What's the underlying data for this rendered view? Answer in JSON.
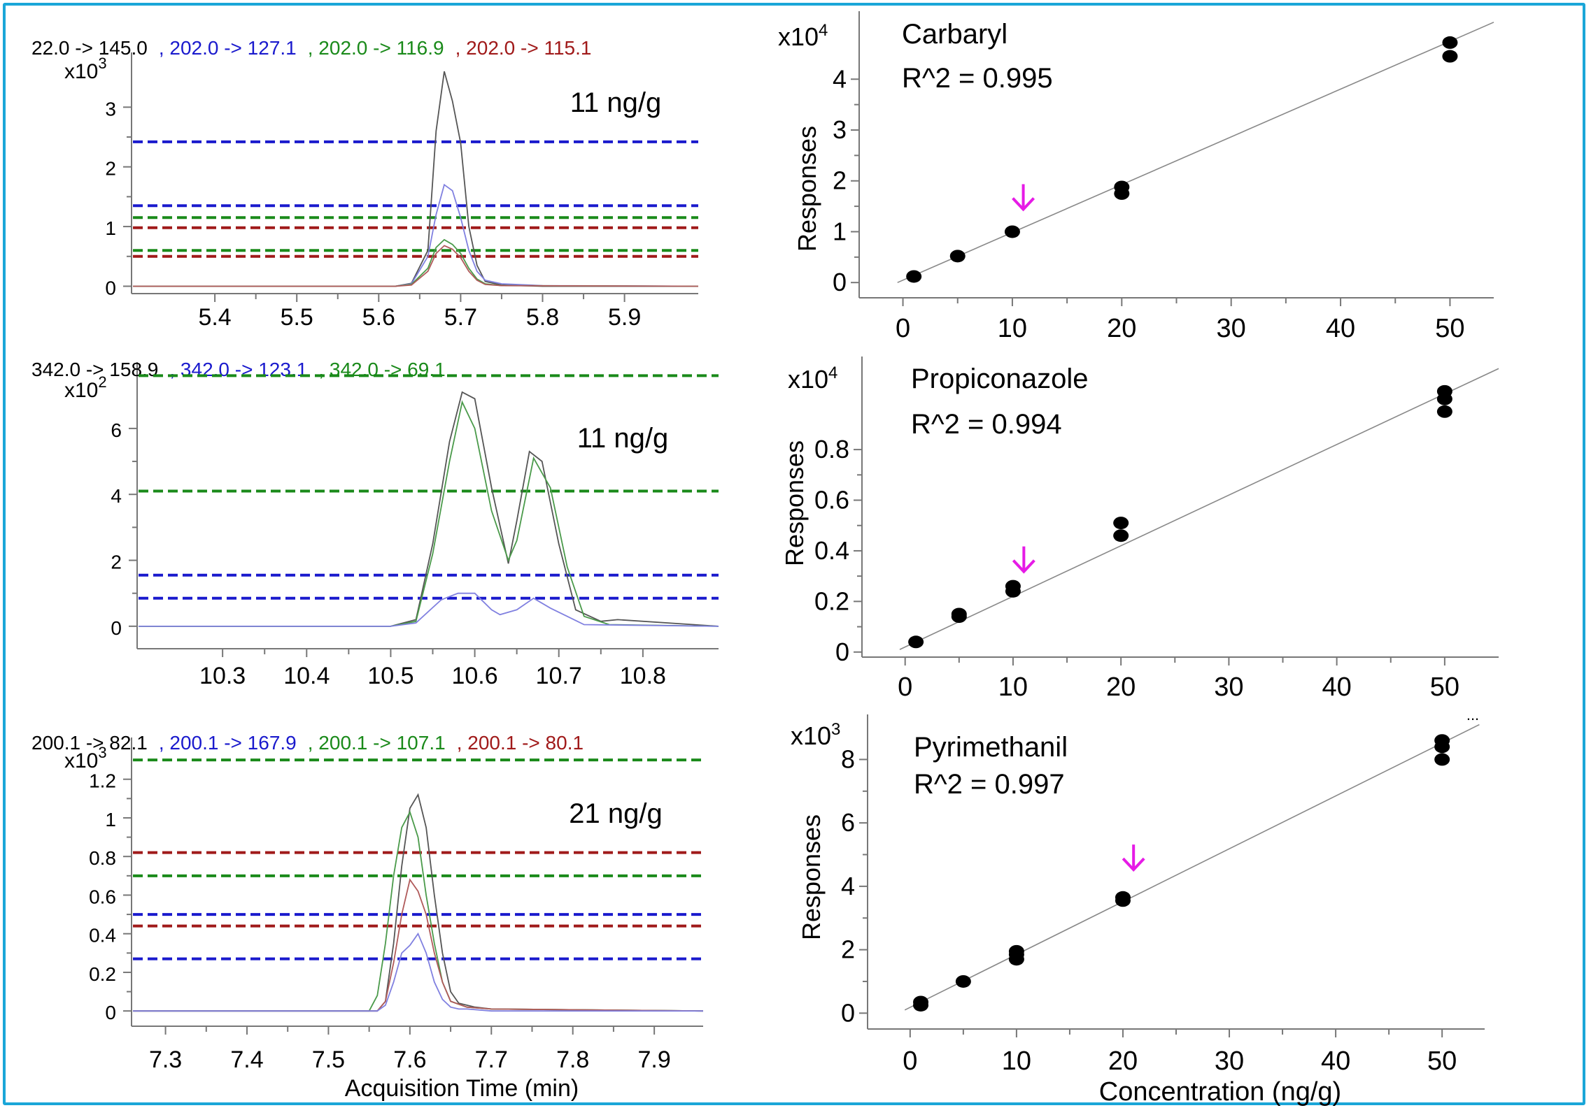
{
  "figure": {
    "frame_color": "#1aa6d8",
    "x_title_chrom": "Acquisition Time (min)",
    "x_title_cal": "Concentration (ng/g)",
    "y_title_cal": "Responses",
    "ellipsis": "..."
  },
  "chart_data": [
    {
      "type": "line",
      "panel": "chromatogram-1",
      "legend": [
        {
          "label": "22.0 -> 145.0",
          "color": "#000000"
        },
        {
          "label": ", 202.0 -> 127.1",
          "color": "#1a1acd"
        },
        {
          "label": ", 202.0 -> 116.9",
          "color": "#1a8a1a"
        },
        {
          "label": ", 202.0 -> 115.1",
          "color": "#a01a1a"
        }
      ],
      "annotation": "11 ng/g",
      "y_multiplier": "x10",
      "y_exponent": "3",
      "xlim": [
        5.3,
        5.99
      ],
      "ylim": [
        -0.1,
        3.8
      ],
      "xticks": [
        5.4,
        5.5,
        5.6,
        5.7,
        5.8,
        5.9
      ],
      "yticks": [
        0,
        1,
        2,
        3
      ],
      "x_tick_labels": [
        "5.4",
        "5.5",
        "5.6",
        "5.7",
        "5.8",
        "5.9"
      ],
      "y_tick_labels": [
        "0",
        "1",
        "2",
        "3"
      ],
      "thresholds": [
        {
          "y": 2.42,
          "color": "#1a1acd"
        },
        {
          "y": 1.35,
          "color": "#1a1acd"
        },
        {
          "y": 1.15,
          "color": "#1a8a1a"
        },
        {
          "y": 0.98,
          "color": "#a01a1a"
        },
        {
          "y": 0.6,
          "color": "#1a8a1a"
        },
        {
          "y": 0.5,
          "color": "#a01a1a"
        }
      ],
      "series": [
        {
          "color": "#555555",
          "x": [
            5.3,
            5.62,
            5.64,
            5.66,
            5.67,
            5.68,
            5.69,
            5.7,
            5.71,
            5.72,
            5.73,
            5.75,
            5.8,
            5.99
          ],
          "y": [
            0,
            0,
            0.05,
            0.6,
            2.6,
            3.6,
            3.1,
            2.4,
            1.0,
            0.35,
            0.08,
            0.02,
            0,
            0
          ]
        },
        {
          "color": "#8080e0",
          "x": [
            5.3,
            5.62,
            5.64,
            5.66,
            5.67,
            5.68,
            5.69,
            5.7,
            5.71,
            5.72,
            5.73,
            5.75,
            5.8,
            5.99
          ],
          "y": [
            0,
            0,
            0.04,
            0.5,
            1.2,
            1.7,
            1.6,
            1.15,
            0.6,
            0.25,
            0.1,
            0.04,
            0.01,
            0
          ]
        },
        {
          "color": "#4a9a4a",
          "x": [
            5.3,
            5.62,
            5.64,
            5.66,
            5.67,
            5.68,
            5.69,
            5.7,
            5.71,
            5.72,
            5.73,
            5.75,
            5.99
          ],
          "y": [
            0,
            0,
            0.03,
            0.3,
            0.65,
            0.78,
            0.7,
            0.55,
            0.3,
            0.12,
            0.04,
            0.01,
            0
          ]
        },
        {
          "color": "#b05a5a",
          "x": [
            5.3,
            5.62,
            5.64,
            5.66,
            5.67,
            5.68,
            5.69,
            5.7,
            5.71,
            5.72,
            5.73,
            5.75,
            5.99
          ],
          "y": [
            0,
            0,
            0.02,
            0.25,
            0.55,
            0.68,
            0.62,
            0.48,
            0.25,
            0.1,
            0.03,
            0.01,
            0
          ]
        }
      ]
    },
    {
      "type": "line",
      "panel": "chromatogram-2",
      "legend": [
        {
          "label": "342.0 -> 158.9",
          "color": "#000000"
        },
        {
          "label": ", 342.0 -> 123.1",
          "color": "#1a1acd"
        },
        {
          "label": ", 342.0 -> 69.1",
          "color": "#1a8a1a"
        }
      ],
      "annotation": "11 ng/g",
      "y_multiplier": "x10",
      "y_exponent": "2",
      "xlim": [
        10.2,
        10.89
      ],
      "ylim": [
        -0.3,
        7.8
      ],
      "xticks": [
        10.3,
        10.4,
        10.5,
        10.6,
        10.7,
        10.8
      ],
      "yticks": [
        0,
        2,
        4,
        6
      ],
      "x_tick_labels": [
        "10.3",
        "10.4",
        "10.5",
        "10.6",
        "10.7",
        "10.8"
      ],
      "y_tick_labels": [
        "0",
        "2",
        "4",
        "6"
      ],
      "thresholds": [
        {
          "y": 7.6,
          "color": "#1a8a1a"
        },
        {
          "y": 4.1,
          "color": "#1a8a1a"
        },
        {
          "y": 1.55,
          "color": "#1a1acd"
        },
        {
          "y": 0.85,
          "color": "#1a1acd"
        }
      ],
      "series": [
        {
          "color": "#555555",
          "x": [
            10.2,
            10.5,
            10.53,
            10.55,
            10.57,
            10.585,
            10.6,
            10.62,
            10.64,
            10.65,
            10.665,
            10.68,
            10.7,
            10.72,
            10.75,
            10.77,
            10.89
          ],
          "y": [
            0,
            0,
            0.2,
            2.5,
            5.6,
            7.1,
            6.9,
            4.2,
            1.9,
            3.2,
            5.3,
            5.0,
            2.5,
            0.5,
            0.15,
            0.2,
            0
          ]
        },
        {
          "color": "#4a9a4a",
          "x": [
            10.2,
            10.5,
            10.53,
            10.55,
            10.57,
            10.585,
            10.6,
            10.62,
            10.64,
            10.65,
            10.67,
            10.69,
            10.71,
            10.73,
            10.76,
            10.89
          ],
          "y": [
            0,
            0,
            0.15,
            2.2,
            5.0,
            6.8,
            6.0,
            3.5,
            2.0,
            2.6,
            5.1,
            4.2,
            1.8,
            0.3,
            0.05,
            0
          ]
        },
        {
          "color": "#8080e0",
          "x": [
            10.2,
            10.5,
            10.53,
            10.56,
            10.58,
            10.6,
            10.62,
            10.63,
            10.65,
            10.67,
            10.69,
            10.71,
            10.73,
            10.89
          ],
          "y": [
            0,
            0,
            0.1,
            0.8,
            1.0,
            1.0,
            0.5,
            0.35,
            0.5,
            0.85,
            0.55,
            0.3,
            0.05,
            0
          ]
        }
      ]
    },
    {
      "type": "line",
      "panel": "chromatogram-3",
      "legend": [
        {
          "label": "200.1 -> 82.1",
          "color": "#000000"
        },
        {
          "label": ", 200.1 -> 167.9",
          "color": "#1a1acd"
        },
        {
          "label": ", 200.1 -> 107.1",
          "color": "#1a8a1a"
        },
        {
          "label": ", 200.1 -> 80.1",
          "color": "#a01a1a"
        }
      ],
      "annotation": "21 ng/g",
      "y_multiplier": "x10",
      "y_exponent": "3",
      "xlim": [
        7.26,
        7.96
      ],
      "ylim": [
        -0.05,
        1.38
      ],
      "xticks": [
        7.3,
        7.4,
        7.5,
        7.6,
        7.7,
        7.8,
        7.9
      ],
      "yticks": [
        0,
        0.2,
        0.4,
        0.6,
        0.8,
        1,
        1.2
      ],
      "x_tick_labels": [
        "7.3",
        "7.4",
        "7.5",
        "7.6",
        "7.7",
        "7.8",
        "7.9"
      ],
      "y_tick_labels": [
        "0",
        "0.2",
        "0.4",
        "0.6",
        "0.8",
        "1",
        "1.2"
      ],
      "thresholds": [
        {
          "y": 1.3,
          "color": "#1a8a1a"
        },
        {
          "y": 0.82,
          "color": "#a01a1a"
        },
        {
          "y": 0.7,
          "color": "#1a8a1a"
        },
        {
          "y": 0.5,
          "color": "#1a1acd"
        },
        {
          "y": 0.44,
          "color": "#a01a1a"
        },
        {
          "y": 0.27,
          "color": "#1a1acd"
        }
      ],
      "series": [
        {
          "color": "#555555",
          "x": [
            7.26,
            7.56,
            7.57,
            7.58,
            7.59,
            7.6,
            7.61,
            7.62,
            7.63,
            7.64,
            7.65,
            7.66,
            7.68,
            7.7,
            7.96
          ],
          "y": [
            0,
            0,
            0.05,
            0.35,
            0.75,
            1.05,
            1.12,
            0.95,
            0.6,
            0.3,
            0.1,
            0.04,
            0.02,
            0.01,
            0
          ]
        },
        {
          "color": "#4a9a4a",
          "x": [
            7.26,
            7.55,
            7.56,
            7.57,
            7.58,
            7.59,
            7.6,
            7.61,
            7.62,
            7.63,
            7.64,
            7.65,
            7.67,
            7.7,
            7.96
          ],
          "y": [
            0,
            0,
            0.08,
            0.35,
            0.7,
            0.95,
            1.03,
            0.9,
            0.6,
            0.35,
            0.15,
            0.05,
            0.02,
            0.01,
            0
          ]
        },
        {
          "color": "#b05a5a",
          "x": [
            7.26,
            7.56,
            7.57,
            7.58,
            7.59,
            7.6,
            7.61,
            7.62,
            7.63,
            7.64,
            7.65,
            7.67,
            7.7,
            7.96
          ],
          "y": [
            0,
            0,
            0.05,
            0.25,
            0.5,
            0.68,
            0.62,
            0.5,
            0.3,
            0.15,
            0.05,
            0.02,
            0.01,
            0
          ]
        },
        {
          "color": "#8080e0",
          "x": [
            7.26,
            7.56,
            7.57,
            7.58,
            7.59,
            7.6,
            7.61,
            7.62,
            7.63,
            7.64,
            7.65,
            7.66,
            7.67,
            7.7,
            7.96
          ],
          "y": [
            0,
            0,
            0.03,
            0.15,
            0.3,
            0.34,
            0.4,
            0.3,
            0.15,
            0.06,
            0.02,
            0.01,
            0.01,
            0,
            0
          ]
        }
      ]
    },
    {
      "type": "scatter",
      "panel": "calibration-1",
      "compound": "Carbaryl",
      "r2": "R^2 = 0.995",
      "y_multiplier": "x10",
      "y_exponent": "4",
      "xlim": [
        -4,
        54
      ],
      "ylim": [
        -0.3,
        5.2
      ],
      "xticks": [
        0,
        10,
        20,
        30,
        40,
        50
      ],
      "yticks": [
        0,
        1,
        2,
        3,
        4
      ],
      "x_tick_labels": [
        "0",
        "10",
        "20",
        "30",
        "40",
        "50"
      ],
      "y_tick_labels": [
        "0",
        "1",
        "2",
        "3",
        "4"
      ],
      "points": {
        "x": [
          1,
          5,
          10,
          20,
          20,
          50,
          50
        ],
        "y": [
          0.12,
          0.52,
          1.0,
          1.88,
          1.75,
          4.72,
          4.45
        ]
      },
      "fit": {
        "x": [
          -0.5,
          54
        ],
        "y": [
          0.0,
          5.12
        ]
      },
      "marker_x": 11,
      "marker_y": 1.55,
      "marker_color": "#e61be6"
    },
    {
      "type": "scatter",
      "panel": "calibration-2",
      "compound": "Propiconazole",
      "r2": "R^2 = 0.994",
      "y_multiplier": "x10",
      "y_exponent": "4",
      "xlim": [
        -4,
        55
      ],
      "ylim": [
        -0.02,
        1.14
      ],
      "xticks": [
        0,
        10,
        20,
        30,
        40,
        50
      ],
      "yticks": [
        0,
        0.2,
        0.4,
        0.6,
        0.8
      ],
      "x_tick_labels": [
        "0",
        "10",
        "20",
        "30",
        "40",
        "50"
      ],
      "y_tick_labels": [
        "0",
        "0.2",
        "0.4",
        "0.6",
        "0.8"
      ],
      "points": {
        "x": [
          1,
          5,
          5,
          10,
          10,
          20,
          20,
          50,
          50,
          50
        ],
        "y": [
          0.04,
          0.14,
          0.15,
          0.24,
          0.26,
          0.46,
          0.51,
          1.03,
          1.0,
          0.95
        ]
      },
      "fit": {
        "x": [
          -0.5,
          55
        ],
        "y": [
          0.01,
          1.12
        ]
      },
      "marker_x": 11,
      "marker_y": 0.34,
      "marker_color": "#e61be6"
    },
    {
      "type": "scatter",
      "panel": "calibration-3",
      "compound": "Pyrimethanil",
      "r2": "R^2 = 0.997",
      "y_multiplier": "x10",
      "y_exponent": "3",
      "xlim": [
        -4,
        54
      ],
      "ylim": [
        -0.5,
        9.2
      ],
      "xticks": [
        0,
        10,
        20,
        30,
        40,
        50
      ],
      "yticks": [
        0,
        2,
        4,
        6,
        8
      ],
      "x_tick_labels": [
        "0",
        "10",
        "20",
        "30",
        "40",
        "50"
      ],
      "y_tick_labels": [
        "0",
        "2",
        "4",
        "6",
        "8"
      ],
      "points": {
        "x": [
          1,
          1,
          5,
          10,
          10,
          10,
          20,
          20,
          50,
          50,
          50
        ],
        "y": [
          0.25,
          0.35,
          1.0,
          1.7,
          1.85,
          1.95,
          3.55,
          3.65,
          8.4,
          8.6,
          8.0
        ]
      },
      "fit": {
        "x": [
          -0.5,
          53.5
        ],
        "y": [
          0.1,
          9.1
        ]
      },
      "marker_x": 21,
      "marker_y": 4.7,
      "marker_color": "#e61be6"
    }
  ]
}
